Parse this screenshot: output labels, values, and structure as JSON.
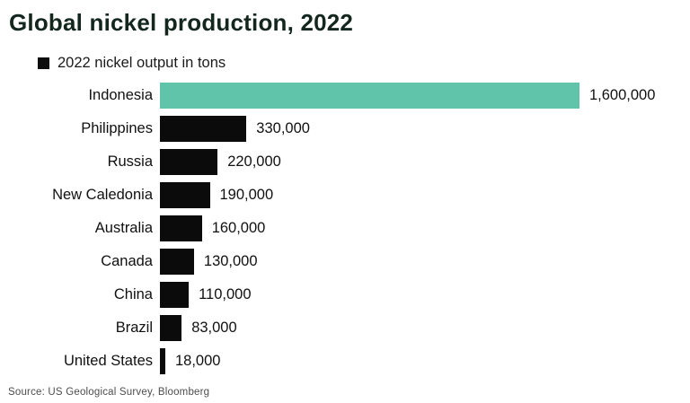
{
  "page": {
    "title": "Global nickel production, 2022",
    "source": "Source: US Geological Survey, Bloomberg"
  },
  "legend": {
    "label": "2022 nickel output in tons",
    "marker_color": "#0d0d0d"
  },
  "colors": {
    "background": "#ffffff",
    "title_text": "#13271f",
    "body_text": "#111111",
    "source_text": "#4d4d4d",
    "bar_default": "#0b0b0b",
    "bar_highlight": "#5fc4aa"
  },
  "chart_data": {
    "type": "bar",
    "orientation": "horizontal",
    "title": "Global nickel production, 2022",
    "legend": [
      "2022 nickel output in tons"
    ],
    "legend_position": "top-left",
    "grid": false,
    "categories": [
      "Indonesia",
      "Philippines",
      "Russia",
      "New Caledonia",
      "Australia",
      "Canada",
      "China",
      "Brazil",
      "United States"
    ],
    "values": [
      1600000,
      330000,
      220000,
      190000,
      160000,
      130000,
      110000,
      83000,
      18000
    ],
    "value_labels": [
      "1,600,000",
      "330,000",
      "220,000",
      "190,000",
      "160,000",
      "130,000",
      "110,000",
      "83,000",
      "18,000"
    ],
    "xlabel": "",
    "ylabel": "",
    "xlim": [
      0,
      1600000
    ],
    "highlight_index": 0,
    "bar_color_default": "#0b0b0b",
    "bar_color_highlight": "#5fc4aa",
    "source": "Source: US Geological Survey, Bloomberg"
  }
}
